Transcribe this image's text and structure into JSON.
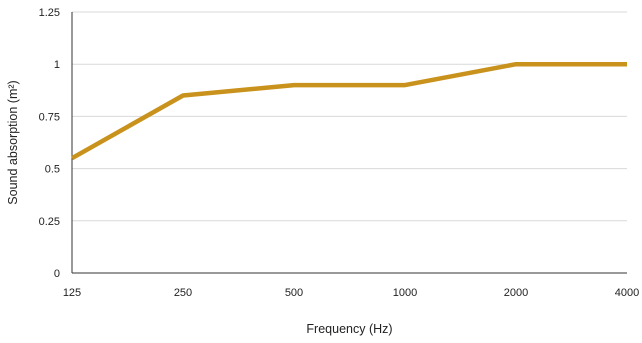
{
  "chart_data": {
    "type": "line",
    "categories": [
      "125",
      "250",
      "500",
      "1000",
      "2000",
      "4000"
    ],
    "series": [
      {
        "values": [
          0.55,
          0.85,
          0.9,
          0.9,
          1,
          1
        ]
      }
    ],
    "xlabel": "Frequency (Hz)",
    "ylabel": "Sound absorption (m²)",
    "ylim": [
      0,
      1.25
    ],
    "yticks": [
      0,
      0.25,
      0.5,
      0.75,
      1,
      1.25
    ],
    "ytick_labels": [
      "0",
      "0.25",
      "0.5",
      "0.75",
      "1",
      "1.25"
    ],
    "grid": true,
    "colors": {
      "series": "#C8921C",
      "grid": "#d9d9d9",
      "axis": "#333333"
    }
  }
}
